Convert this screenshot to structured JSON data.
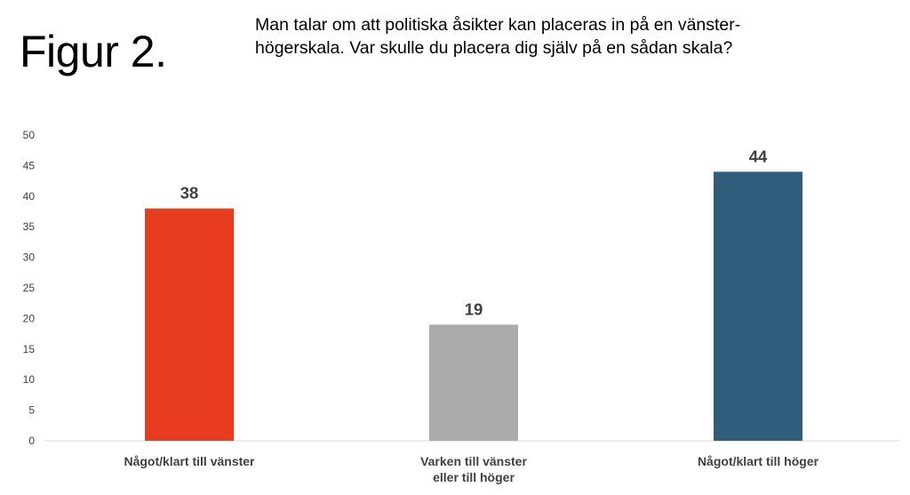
{
  "figure_label": "Figur 2.",
  "question": "Man talar om att politiska åsikter kan placeras in på en vänster-högerskala. Var skulle du placera dig själv på en sådan skala?",
  "colors": {
    "left": "#E83C21",
    "neutral": "#ABABAB",
    "right": "#2F5D7C",
    "axis": "#D9D9D9",
    "text": "#404040"
  },
  "chart_data": {
    "type": "bar",
    "title": "",
    "xlabel": "",
    "ylabel": "",
    "ylim": [
      0,
      50
    ],
    "yticks": [
      0,
      5,
      10,
      15,
      20,
      25,
      30,
      35,
      40,
      45,
      50
    ],
    "grid": false,
    "categories": [
      [
        "Något/klart till vänster"
      ],
      [
        "Varken till vänster",
        "eller till höger"
      ],
      [
        "Något/klart till höger"
      ]
    ],
    "values": [
      38,
      19,
      44
    ],
    "bar_colors": [
      "#E83C21",
      "#ABABAB",
      "#2F5D7C"
    ],
    "data_labels": [
      "38",
      "19",
      "44"
    ]
  }
}
